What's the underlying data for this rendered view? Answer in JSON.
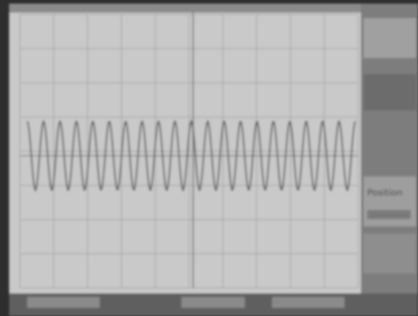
{
  "screen": {
    "side_panel": {
      "label": "Position"
    }
  }
}
